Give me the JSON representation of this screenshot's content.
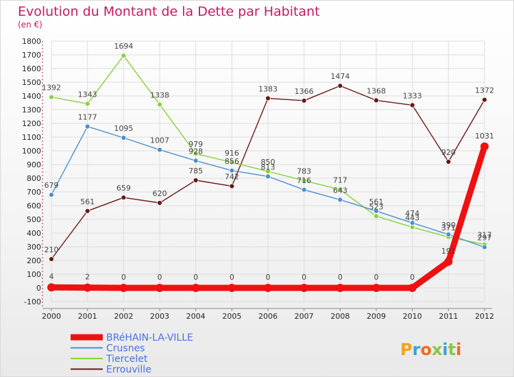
{
  "header": {
    "title": "Evolution du Montant de la Dette par Habitant",
    "subtitle": "(en €)"
  },
  "logo": {
    "text": "Proxiti"
  },
  "colors": {
    "title": "#c21a62",
    "grid": "#dddddd",
    "axis": "#888888"
  },
  "chart_data": {
    "type": "line",
    "x": [
      "2000",
      "2001",
      "2002",
      "2003",
      "2004",
      "2005",
      "2006",
      "2007",
      "2008",
      "2009",
      "2010",
      "2011",
      "2012"
    ],
    "ylim": [
      -100,
      1800
    ],
    "yticks": [
      -100,
      0,
      100,
      200,
      300,
      400,
      500,
      600,
      700,
      800,
      900,
      1000,
      1100,
      1200,
      1300,
      1400,
      1500,
      1600,
      1700,
      1800
    ],
    "grid": true,
    "legend_position": "bottom-left",
    "series": [
      {
        "name": "Errouville",
        "color": "#6b1616",
        "values": [
          210,
          561,
          659,
          620,
          785,
          742,
          1383,
          1366,
          1474,
          1368,
          1333,
          920,
          1372
        ],
        "labels": [
          "210",
          "561",
          "659",
          "620",
          "785",
          "742",
          "1383",
          "1366",
          "1474",
          "1368",
          "1333",
          "920",
          "1372"
        ]
      },
      {
        "name": "Tiercelet",
        "color": "#88d13c",
        "values": [
          1392,
          1343,
          1694,
          1338,
          979,
          916,
          850,
          783,
          717,
          523,
          443,
          371,
          317
        ],
        "labels": [
          "1392",
          "1343",
          "1694",
          "1338",
          "979",
          "916",
          "850",
          "783",
          "717",
          "523",
          "443",
          "371",
          "317"
        ]
      },
      {
        "name": "Crusnes",
        "color": "#4a8fd0",
        "values": [
          679,
          1177,
          1095,
          1007,
          928,
          856,
          813,
          716,
          643,
          561,
          474,
          390,
          297
        ],
        "labels": [
          "679",
          "1177",
          "1095",
          "1007",
          "928",
          "856",
          "813",
          "716",
          "643",
          "561",
          "474",
          "390",
          "297"
        ]
      },
      {
        "name": "BRéHAIN-LA-VILLE",
        "color": "#ee1111",
        "values": [
          4,
          2,
          0,
          0,
          0,
          0,
          0,
          0,
          0,
          0,
          0,
          191,
          1031
        ],
        "labels": [
          "4",
          "2",
          "0",
          "0",
          "0",
          "0",
          "0",
          "0",
          "0",
          "0",
          "0",
          "191",
          "1031"
        ]
      }
    ],
    "legend_order": [
      "BRéHAIN-LA-VILLE",
      "Crusnes",
      "Tiercelet",
      "Errouville"
    ]
  }
}
